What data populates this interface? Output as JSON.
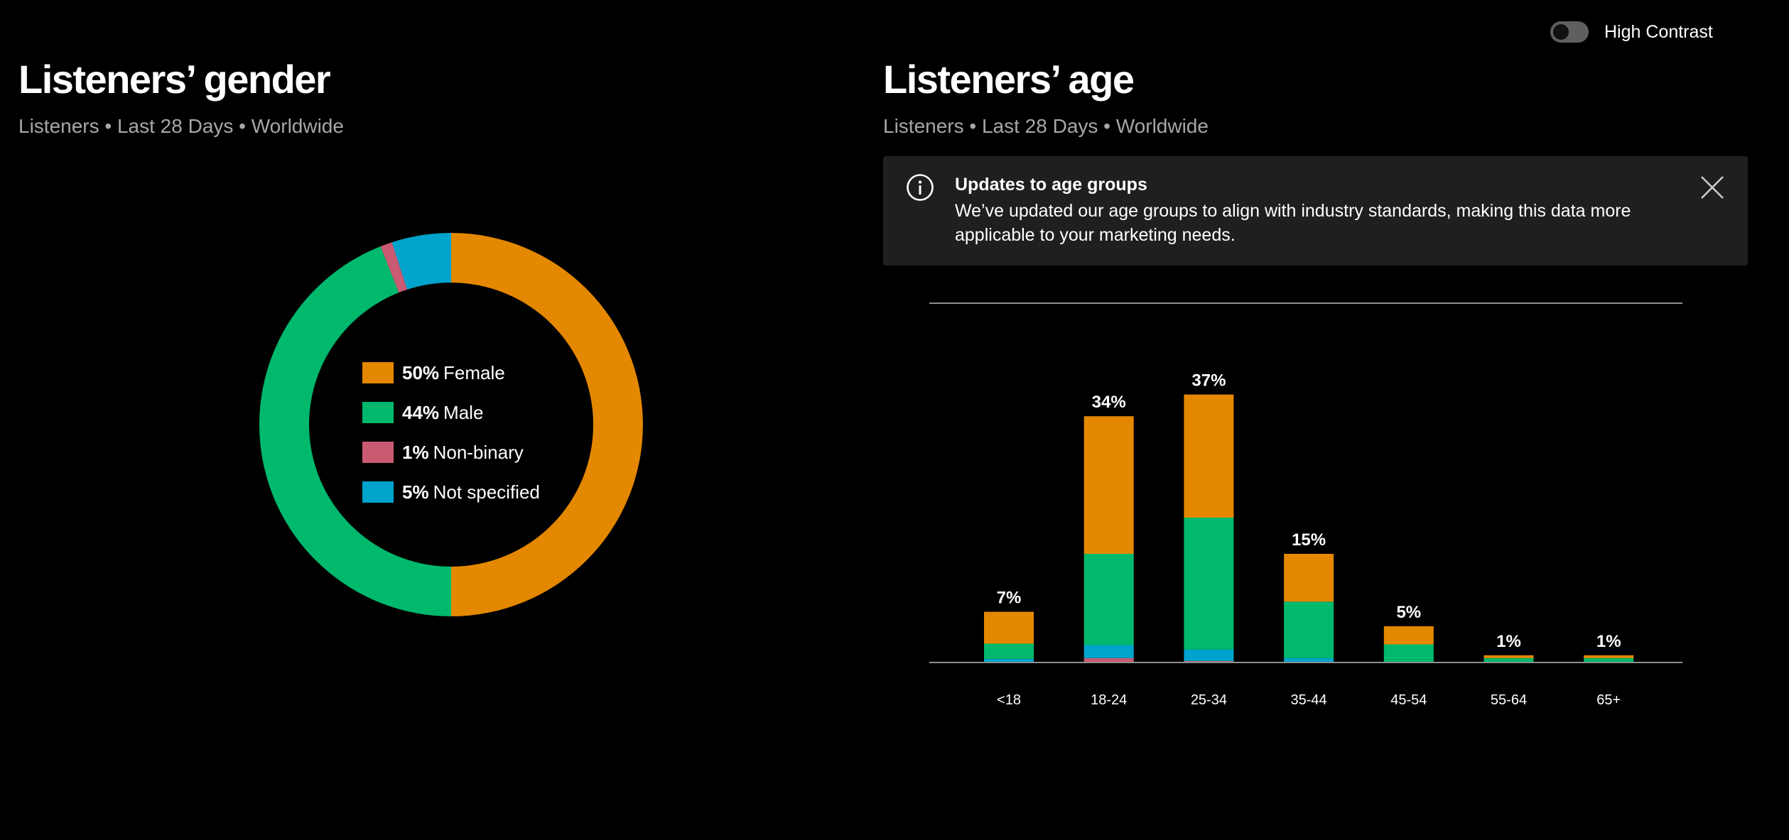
{
  "toggle": {
    "label": "High Contrast",
    "on": false
  },
  "gender": {
    "title": "Listeners’ gender",
    "subtitle": "Listeners • Last 28 Days • Worldwide"
  },
  "age": {
    "title": "Listeners’ age",
    "subtitle": "Listeners • Last 28 Days • Worldwide",
    "notice": {
      "title": "Updates to age groups",
      "body": "We’ve updated our age groups to align with industry standards, making this data more applicable to your marketing needs."
    }
  },
  "icons": {
    "info": "info-icon",
    "close": "close-icon",
    "toggle": "toggle-switch"
  },
  "colors": {
    "female": "#e38800",
    "male": "#00b96d",
    "nonbinary": "#c95a72",
    "not_specified": "#00a3cc",
    "background": "#000000",
    "notice_bg": "#1f1f1f",
    "axis": "#8f8f8f"
  },
  "chart_data": [
    {
      "type": "pie",
      "variant": "donut",
      "title": "Listeners’ gender",
      "slices": [
        {
          "label": "Female",
          "value": 50,
          "display": "50%",
          "color": "#e38800"
        },
        {
          "label": "Male",
          "value": 44,
          "display": "44%",
          "color": "#00b96d"
        },
        {
          "label": "Non-binary",
          "value": 1,
          "display": "1%",
          "color": "#c95a72"
        },
        {
          "label": "Not specified",
          "value": 5,
          "display": "5%",
          "color": "#00a3cc"
        }
      ],
      "legend_placement": "center"
    },
    {
      "type": "bar",
      "stacked": true,
      "title": "Listeners’ age",
      "categories": [
        "<18",
        "18-24",
        "25-34",
        "35-44",
        "45-54",
        "55-64",
        "65+"
      ],
      "totals": [
        7,
        34,
        37,
        15,
        5,
        1,
        1
      ],
      "total_labels": [
        "7%",
        "34%",
        "37%",
        "15%",
        "5%",
        "1%",
        "1%"
      ],
      "series": [
        {
          "key": "nonbinary",
          "values": [
            0,
            0.6,
            0.2,
            0,
            0,
            0,
            0
          ],
          "color": "#c95a72"
        },
        {
          "key": "not_specified",
          "values": [
            0.5,
            1.8,
            1.6,
            0.6,
            0.1,
            0,
            0
          ],
          "color": "#00a3cc"
        },
        {
          "key": "male",
          "values": [
            2.1,
            12.6,
            18.2,
            7.8,
            2.4,
            0.6,
            0.6
          ],
          "color": "#00b96d"
        },
        {
          "key": "female",
          "values": [
            4.4,
            19,
            17,
            6.6,
            2.5,
            0.4,
            0.4
          ],
          "color": "#e38800"
        }
      ],
      "ylim": [
        0,
        50
      ],
      "grid": false
    }
  ]
}
